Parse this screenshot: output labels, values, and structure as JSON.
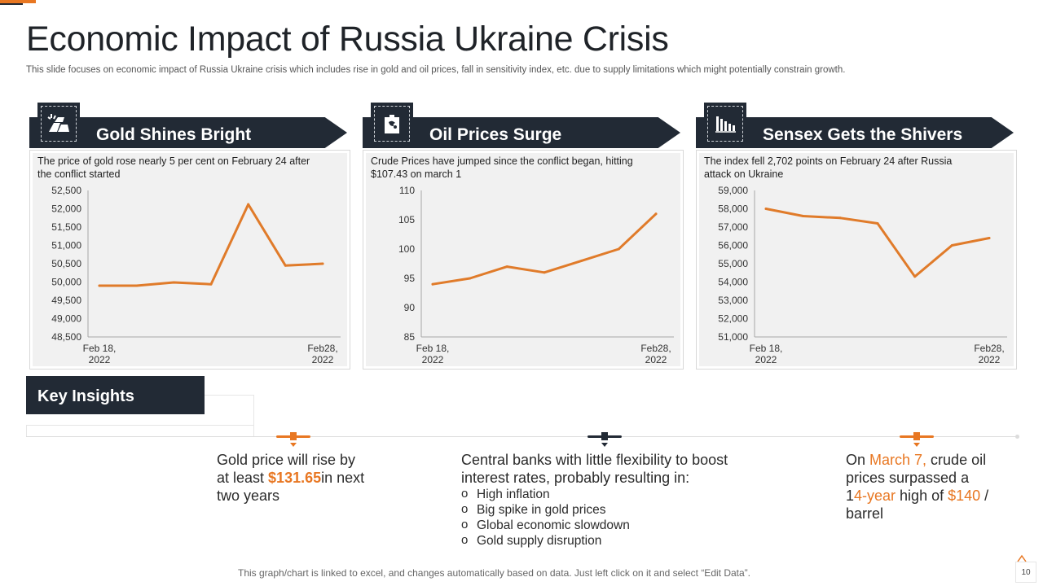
{
  "title": "Economic Impact of Russia Ukraine Crisis",
  "subtitle": "This slide focuses on economic impact of Russia Ukraine crisis which includes rise in gold and oil prices, fall in sensitivity index, etc.  due to  supply limitations which might potentially constrain growth.",
  "colors": {
    "accent": "#e87722",
    "dark": "#222a35",
    "panel": "#f1f1f1",
    "line": "#e07b2a"
  },
  "panels": [
    {
      "title": "Gold Shines Bright",
      "icon": "gold-bars-icon",
      "description": "The price of gold rose nearly 5 per cent on February 24 after the conflict started"
    },
    {
      "title": "Oil Prices Surge",
      "icon": "oil-can-icon",
      "description": "Crude Prices have  jumped since the conflict began, hitting $107.43 on march 1"
    },
    {
      "title": "Sensex Gets the Shivers",
      "icon": "bar-chart-icon",
      "description": "The index fell 2,702 points on February 24 after Russia attack on Ukraine"
    }
  ],
  "chart_data": [
    {
      "type": "line",
      "title": "Gold Shines Bright",
      "xlabel": "",
      "ylabel": "",
      "x_start_label": [
        "Feb 18,",
        "2022"
      ],
      "x_end_label": [
        "Feb28,",
        "2022"
      ],
      "values": [
        49900,
        49900,
        49990,
        49940,
        52120,
        50450,
        50500
      ],
      "ylim": [
        48500,
        52500
      ],
      "yticks": [
        48500,
        49000,
        49500,
        50000,
        50500,
        51000,
        51500,
        52000,
        52500
      ],
      "ytick_labels": [
        "48,500",
        "49,000",
        "49,500",
        "50,000",
        "50,500",
        "51,000",
        "51,500",
        "52,000",
        "52,500"
      ],
      "grid": false
    },
    {
      "type": "line",
      "title": "Oil Prices Surge",
      "xlabel": "",
      "ylabel": "",
      "x_start_label": [
        "Feb 18,",
        "2022"
      ],
      "x_end_label": [
        "Feb28,",
        "2022"
      ],
      "values": [
        94,
        95,
        97,
        96,
        98,
        100,
        106
      ],
      "ylim": [
        85,
        110
      ],
      "yticks": [
        85,
        90,
        95,
        100,
        105,
        110
      ],
      "ytick_labels": [
        "85",
        "90",
        "95",
        "100",
        "105",
        "110"
      ],
      "grid": false
    },
    {
      "type": "line",
      "title": "Sensex Gets the Shivers",
      "xlabel": "",
      "ylabel": "",
      "x_start_label": [
        "Feb 18,",
        "2022"
      ],
      "x_end_label": [
        "Feb28,",
        "2022"
      ],
      "values": [
        58000,
        57600,
        57500,
        57200,
        54300,
        56000,
        56400
      ],
      "ylim": [
        51000,
        59000
      ],
      "yticks": [
        51000,
        52000,
        53000,
        54000,
        55000,
        56000,
        57000,
        58000,
        59000
      ],
      "ytick_labels": [
        "51,000",
        "52,000",
        "53,000",
        "54,000",
        "55,000",
        "56,000",
        "57,000",
        "58,000",
        "59,000"
      ],
      "grid": false
    }
  ],
  "insights": {
    "label": "Key Insights",
    "gold": {
      "p1": "Gold price will rise by at least ",
      "amount": "$131.65",
      "p2": "in next two years"
    },
    "banks": {
      "text": "Central banks with little flexibility to boost interest rates, probably resulting in:",
      "items": [
        "High inflation",
        "Big spike in gold prices",
        "Global economic slowdown",
        "Gold supply disruption"
      ]
    },
    "oil": {
      "p1": "On ",
      "date": "March 7,",
      "p2": " crude oil prices surpassed a 1",
      "years": "4-year",
      "p3": " high of ",
      "price": "$140",
      "p4": " / barrel"
    }
  },
  "footer": "This graph/chart is linked to excel, and changes automatically based on data. Just left click on it and select “Edit Data”.",
  "page_number": "10"
}
